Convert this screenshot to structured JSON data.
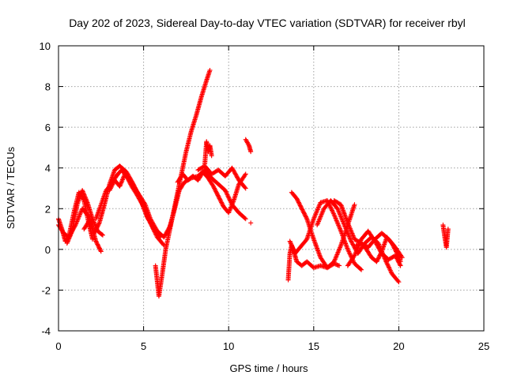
{
  "chart_data": {
    "type": "scatter",
    "title": "Day 202 of 2023, Sidereal Day-to-day VTEC variation (SDTVAR) for receiver rbyl",
    "xlabel": "GPS time / hours",
    "ylabel": "SDTVAR / TECUs",
    "xlim": [
      0,
      25
    ],
    "ylim": [
      -4,
      10
    ],
    "xticks": [
      0,
      5,
      10,
      15,
      20,
      25
    ],
    "yticks": [
      -4,
      -2,
      0,
      2,
      4,
      6,
      8,
      10
    ],
    "x_tick_labels": [
      "0",
      "5",
      "10",
      "15",
      "20",
      "25"
    ],
    "y_tick_labels": [
      "-4",
      "-2",
      "0",
      "2",
      "4",
      "6",
      "8",
      "10"
    ],
    "grid": true,
    "marker": "+",
    "color": "#ff0000",
    "series": [
      {
        "name": "satellite-arcs",
        "arcs": [
          {
            "x": [
              0.0,
              0.2,
              0.4,
              0.6,
              0.9,
              1.2,
              1.5,
              1.8,
              2.0
            ],
            "y": [
              1.5,
              1.0,
              0.4,
              0.6,
              1.8,
              2.8,
              2.4,
              1.2,
              0.5
            ]
          },
          {
            "x": [
              0.0,
              0.3,
              0.6,
              1.0,
              1.4,
              1.8,
              2.2,
              2.5
            ],
            "y": [
              1.2,
              0.8,
              0.6,
              1.2,
              2.0,
              1.6,
              0.4,
              -0.1
            ]
          },
          {
            "x": [
              0.5,
              0.8,
              1.1,
              1.4,
              1.7,
              2.0,
              2.3,
              2.6
            ],
            "y": [
              0.3,
              0.9,
              2.2,
              2.9,
              2.3,
              1.5,
              0.9,
              0.7
            ]
          },
          {
            "x": [
              1.5,
              1.8,
              2.1,
              2.4,
              2.7,
              3.0,
              3.3,
              3.6,
              4.0,
              4.4,
              4.8,
              5.2,
              5.6,
              6.0
            ],
            "y": [
              1.0,
              1.4,
              0.8,
              1.3,
              2.2,
              3.2,
              3.9,
              4.1,
              3.8,
              3.2,
              2.5,
              1.6,
              1.0,
              0.6
            ]
          },
          {
            "x": [
              2.2,
              2.5,
              2.8,
              3.1,
              3.4,
              3.7,
              4.0,
              4.3,
              4.6,
              5.0,
              5.4,
              5.8,
              6.2
            ],
            "y": [
              1.5,
              2.2,
              2.9,
              3.2,
              3.6,
              3.9,
              3.6,
              3.1,
              2.7,
              2.1,
              1.3,
              0.6,
              0.2
            ]
          },
          {
            "x": [
              3.0,
              3.3,
              3.6,
              3.9,
              4.2,
              4.5,
              4.8,
              5.1,
              5.4,
              5.8,
              6.2,
              6.6
            ],
            "y": [
              2.9,
              3.4,
              3.1,
              3.7,
              3.4,
              3.0,
              2.6,
              2.2,
              1.5,
              0.9,
              0.6,
              1.2
            ]
          },
          {
            "x": [
              5.7,
              5.9,
              6.1,
              6.3,
              6.6,
              6.9,
              7.2,
              7.5,
              7.8,
              8.1,
              8.4,
              8.7,
              8.9
            ],
            "y": [
              -0.8,
              -2.3,
              -1.2,
              0.0,
              1.2,
              2.4,
              3.6,
              4.8,
              5.8,
              6.6,
              7.5,
              8.3,
              8.8
            ]
          },
          {
            "x": [
              6.5,
              6.8,
              7.1,
              7.4,
              7.8,
              8.2,
              8.6,
              9.0,
              9.4,
              9.8,
              10.2,
              10.6,
              11.0
            ],
            "y": [
              1.0,
              1.9,
              2.9,
              3.3,
              3.5,
              3.6,
              3.9,
              3.5,
              3.2,
              2.9,
              2.2,
              1.8,
              1.5
            ]
          },
          {
            "x": [
              7.0,
              7.3,
              7.6,
              7.9,
              8.2,
              8.5,
              8.8,
              9.1,
              9.4,
              9.7,
              10.0,
              10.3,
              10.6,
              11.0
            ],
            "y": [
              3.3,
              3.7,
              3.4,
              3.6,
              3.4,
              3.8,
              3.5,
              3.1,
              2.6,
              2.1,
              1.8,
              2.4,
              3.2,
              3.7
            ]
          },
          {
            "x": [
              8.6,
              8.7,
              8.8,
              8.9,
              9.0
            ],
            "y": [
              4.2,
              5.3,
              4.8,
              5.1,
              4.6
            ]
          },
          {
            "x": [
              8.2,
              8.6,
              9.0,
              9.4,
              9.8,
              10.2,
              10.6,
              11.0
            ],
            "y": [
              3.9,
              4.1,
              3.7,
              3.9,
              3.6,
              4.0,
              3.4,
              3.0
            ]
          },
          {
            "x": [
              11.0,
              11.2,
              11.3
            ],
            "y": [
              5.4,
              5.1,
              4.8
            ]
          },
          {
            "x": [
              11.3
            ],
            "y": [
              1.3
            ]
          },
          {
            "x": [
              13.5,
              13.6,
              13.7,
              13.8,
              14.0,
              14.3,
              14.6,
              15.0,
              15.4,
              15.8,
              16.2,
              16.5
            ],
            "y": [
              -1.5,
              -0.2,
              0.2,
              0.0,
              -0.6,
              -0.8,
              -0.6,
              -0.9,
              -0.8,
              -0.9,
              -0.7,
              -0.8
            ]
          },
          {
            "x": [
              13.7,
              14.0,
              14.3,
              14.6,
              15.0,
              15.4,
              15.8,
              16.2,
              16.6,
              17.0,
              17.4
            ],
            "y": [
              2.8,
              2.5,
              2.0,
              1.5,
              0.5,
              -0.4,
              -0.9,
              -0.6,
              0.2,
              1.2,
              2.2
            ]
          },
          {
            "x": [
              13.6,
              13.9,
              14.2,
              14.6,
              15.0,
              15.4,
              15.8,
              16.2,
              16.6,
              17.0,
              17.4,
              17.8
            ],
            "y": [
              0.4,
              -0.2,
              0.1,
              0.5,
              1.5,
              2.3,
              2.4,
              1.7,
              0.9,
              0.0,
              -0.7,
              -1.0
            ]
          },
          {
            "x": [
              15.2,
              15.6,
              16.0,
              16.4,
              16.8,
              17.2,
              17.6,
              18.0,
              18.4,
              18.8,
              19.2,
              19.6,
              20.0
            ],
            "y": [
              1.2,
              2.0,
              2.4,
              2.0,
              1.2,
              0.4,
              -0.2,
              0.3,
              0.6,
              0.3,
              -0.5,
              -1.2,
              -1.6
            ]
          },
          {
            "x": [
              16.2,
              16.6,
              17.0,
              17.4,
              17.8,
              18.2,
              18.6,
              19.0,
              19.4,
              19.8,
              20.2
            ],
            "y": [
              2.4,
              2.2,
              1.3,
              0.5,
              0.3,
              0.1,
              0.5,
              0.8,
              0.5,
              0.1,
              -0.4
            ]
          },
          {
            "x": [
              17.0,
              17.4,
              17.8,
              18.2,
              18.6,
              19.0,
              19.4,
              19.8,
              20.1
            ],
            "y": [
              -0.8,
              -0.3,
              0.5,
              0.9,
              0.4,
              -0.2,
              -0.5,
              -0.3,
              -0.8
            ]
          },
          {
            "x": [
              17.5,
              17.8,
              18.1,
              18.4,
              18.7,
              19.0,
              19.3,
              19.6,
              19.9,
              20.1
            ],
            "y": [
              0.2,
              0.3,
              0.0,
              -0.4,
              -0.6,
              -0.1,
              0.6,
              0.3,
              -0.2,
              -0.6
            ]
          },
          {
            "x": [
              22.6,
              22.7,
              22.8,
              22.9
            ],
            "y": [
              1.2,
              0.6,
              0.1,
              1.0
            ]
          }
        ]
      }
    ]
  }
}
